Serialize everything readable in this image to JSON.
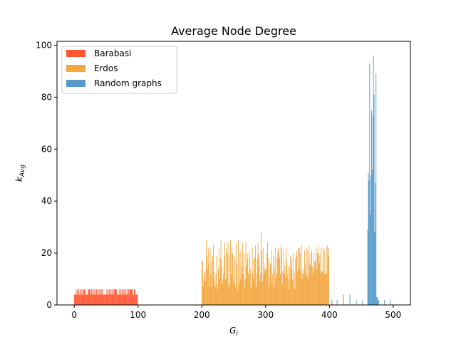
{
  "chart_data": {
    "type": "bar",
    "title": "Average Node Degree",
    "xlabel": "G",
    "xlabel_sub": "i",
    "ylabel": "k",
    "ylabel_sub": "Avg",
    "xlim": [
      -27,
      527
    ],
    "ylim": [
      0,
      101.5
    ],
    "xticks": [
      0,
      100,
      200,
      300,
      400,
      500
    ],
    "yticks": [
      0,
      20,
      40,
      60,
      80,
      100
    ],
    "grid": false,
    "legend_position": "top-left",
    "series": [
      {
        "name": "Barabasi",
        "color": "#ff5733",
        "x_start": 0,
        "values": [
          4,
          4,
          4,
          6,
          4,
          6,
          4,
          6,
          4,
          6,
          4,
          6,
          4,
          6,
          4,
          6,
          6,
          6,
          4,
          4,
          4,
          4,
          6,
          6,
          6,
          6,
          4,
          6,
          4,
          6,
          4,
          6,
          4,
          6,
          4,
          6,
          4,
          6,
          4,
          6,
          4,
          6,
          4,
          6,
          4,
          6,
          4,
          4,
          4,
          4,
          4,
          6,
          4,
          6,
          4,
          6,
          4,
          6,
          4,
          6,
          4,
          6,
          4,
          6,
          6,
          6,
          6,
          4,
          4,
          4,
          4,
          6,
          4,
          6,
          4,
          6,
          4,
          6,
          4,
          6,
          4,
          6,
          4,
          6,
          4,
          6,
          4,
          6,
          6,
          6,
          6,
          6,
          4,
          4,
          6,
          6,
          4,
          4,
          4,
          4
        ]
      },
      {
        "name": "Erdos",
        "color": "#f4a840",
        "x_start": 200,
        "values": [
          17,
          17,
          7,
          10,
          12,
          13,
          9,
          25,
          19,
          14,
          22,
          16,
          7,
          22,
          12,
          17,
          7,
          19,
          23,
          13,
          9,
          7,
          12,
          19,
          6,
          8,
          14,
          22,
          10,
          18,
          25,
          15,
          8,
          10,
          12,
          19,
          24,
          10,
          22,
          10,
          20,
          24,
          7,
          19,
          8,
          25,
          12,
          22,
          20,
          10,
          19,
          8,
          18,
          7,
          24,
          16,
          6,
          25,
          8,
          20,
          10,
          21,
          15,
          12,
          24,
          12,
          20,
          7,
          10,
          24,
          15,
          20,
          18,
          12,
          12,
          20,
          14,
          6,
          7,
          22,
          12,
          10,
          18,
          18,
          23,
          7,
          12,
          18,
          24,
          20,
          15,
          9,
          12,
          28,
          21,
          9,
          22,
          12,
          15,
          13,
          14,
          14,
          20,
          24,
          18,
          7,
          11,
          16,
          16,
          21,
          8,
          12,
          19,
          7,
          14,
          22,
          10,
          12,
          18,
          21,
          22,
          20,
          18,
          12,
          23,
          22,
          8,
          13,
          21,
          12,
          15,
          11,
          22,
          17,
          12,
          10,
          15,
          6,
          15,
          19,
          14,
          18,
          10,
          20,
          6,
          13,
          6,
          18,
          19,
          21,
          13,
          22,
          14,
          22,
          20,
          13,
          23,
          10,
          12,
          14,
          12,
          21,
          16,
          12,
          22,
          11,
          21,
          10,
          23,
          16,
          15,
          20,
          21,
          15,
          12,
          20,
          14,
          17,
          17,
          22,
          14,
          20,
          23,
          20,
          16,
          19,
          12,
          22,
          13,
          13,
          22,
          12,
          21,
          12,
          12,
          22,
          12,
          23,
          19,
          22
        ]
      },
      {
        "name": "Random graphs",
        "color": "#5599c8",
        "points": [
          [
            404,
            2
          ],
          [
            412,
            2
          ],
          [
            422,
            4
          ],
          [
            432,
            4
          ],
          [
            442,
            2
          ],
          [
            452,
            2
          ],
          [
            460,
            29
          ],
          [
            461,
            51
          ],
          [
            462,
            48
          ],
          [
            463,
            93
          ],
          [
            464,
            35
          ],
          [
            465,
            50
          ],
          [
            466,
            75
          ],
          [
            467,
            52
          ],
          [
            468,
            73
          ],
          [
            469,
            96
          ],
          [
            470,
            81
          ],
          [
            471,
            28
          ],
          [
            472,
            47
          ],
          [
            473,
            89
          ],
          [
            474,
            3
          ],
          [
            475,
            3
          ],
          [
            476,
            2
          ],
          [
            477,
            2
          ],
          [
            486,
            2
          ],
          [
            496,
            2
          ]
        ]
      }
    ]
  }
}
